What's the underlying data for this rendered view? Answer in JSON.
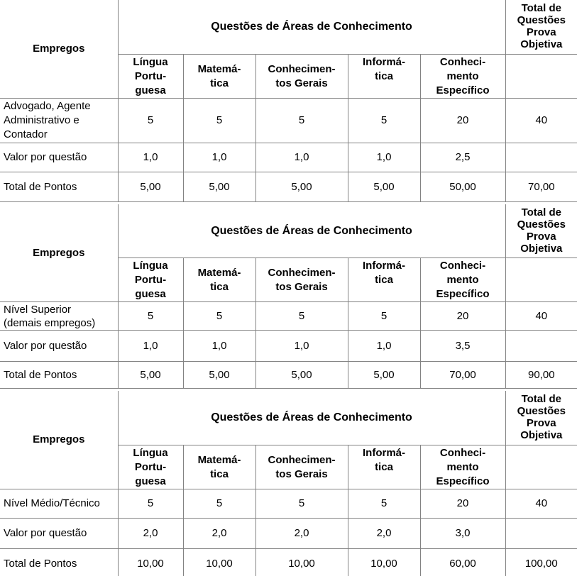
{
  "document": {
    "background": "#ffffff",
    "border_color": "#828282",
    "text_color": "#000000"
  },
  "shared": {
    "empregos_header": "Empregos",
    "knowledge_areas_header": "Questões de Áreas de Conhecimento",
    "total_questoes_header": "Total de\nQuestões\nProva\nObjetiva",
    "subjects": [
      "Língua\nPortu-\nguesa",
      "Matemá-\ntica",
      "Conhecimen-\ntos Gerais",
      "Informá-\ntica",
      "Conheci-\nmento\nEspecífico"
    ],
    "valor_label": "Valor por questão",
    "pontos_label": "Total de Pontos"
  },
  "tables": [
    {
      "job_label": "Advogado, Agente\nAdministrativo e\nContador",
      "questions": [
        "5",
        "5",
        "5",
        "5",
        "20"
      ],
      "questions_total": "40",
      "valor": [
        "1,0",
        "1,0",
        "1,0",
        "1,0",
        "2,5"
      ],
      "valor_total": "",
      "pontos": [
        "5,00",
        "5,00",
        "5,00",
        "5,00",
        "50,00"
      ],
      "pontos_total": "70,00"
    },
    {
      "job_label": "Nível Superior\n(demais empregos)",
      "questions": [
        "5",
        "5",
        "5",
        "5",
        "20"
      ],
      "questions_total": "40",
      "valor": [
        "1,0",
        "1,0",
        "1,0",
        "1,0",
        "3,5"
      ],
      "valor_total": "",
      "pontos": [
        "5,00",
        "5,00",
        "5,00",
        "5,00",
        "70,00"
      ],
      "pontos_total": "90,00"
    },
    {
      "job_label": "Nível Médio/Técnico",
      "questions": [
        "5",
        "5",
        "5",
        "5",
        "20"
      ],
      "questions_total": "40",
      "valor": [
        "2,0",
        "2,0",
        "2,0",
        "2,0",
        "3,0"
      ],
      "valor_total": "",
      "pontos": [
        "10,00",
        "10,00",
        "10,00",
        "10,00",
        "60,00"
      ],
      "pontos_total": "100,00"
    }
  ]
}
